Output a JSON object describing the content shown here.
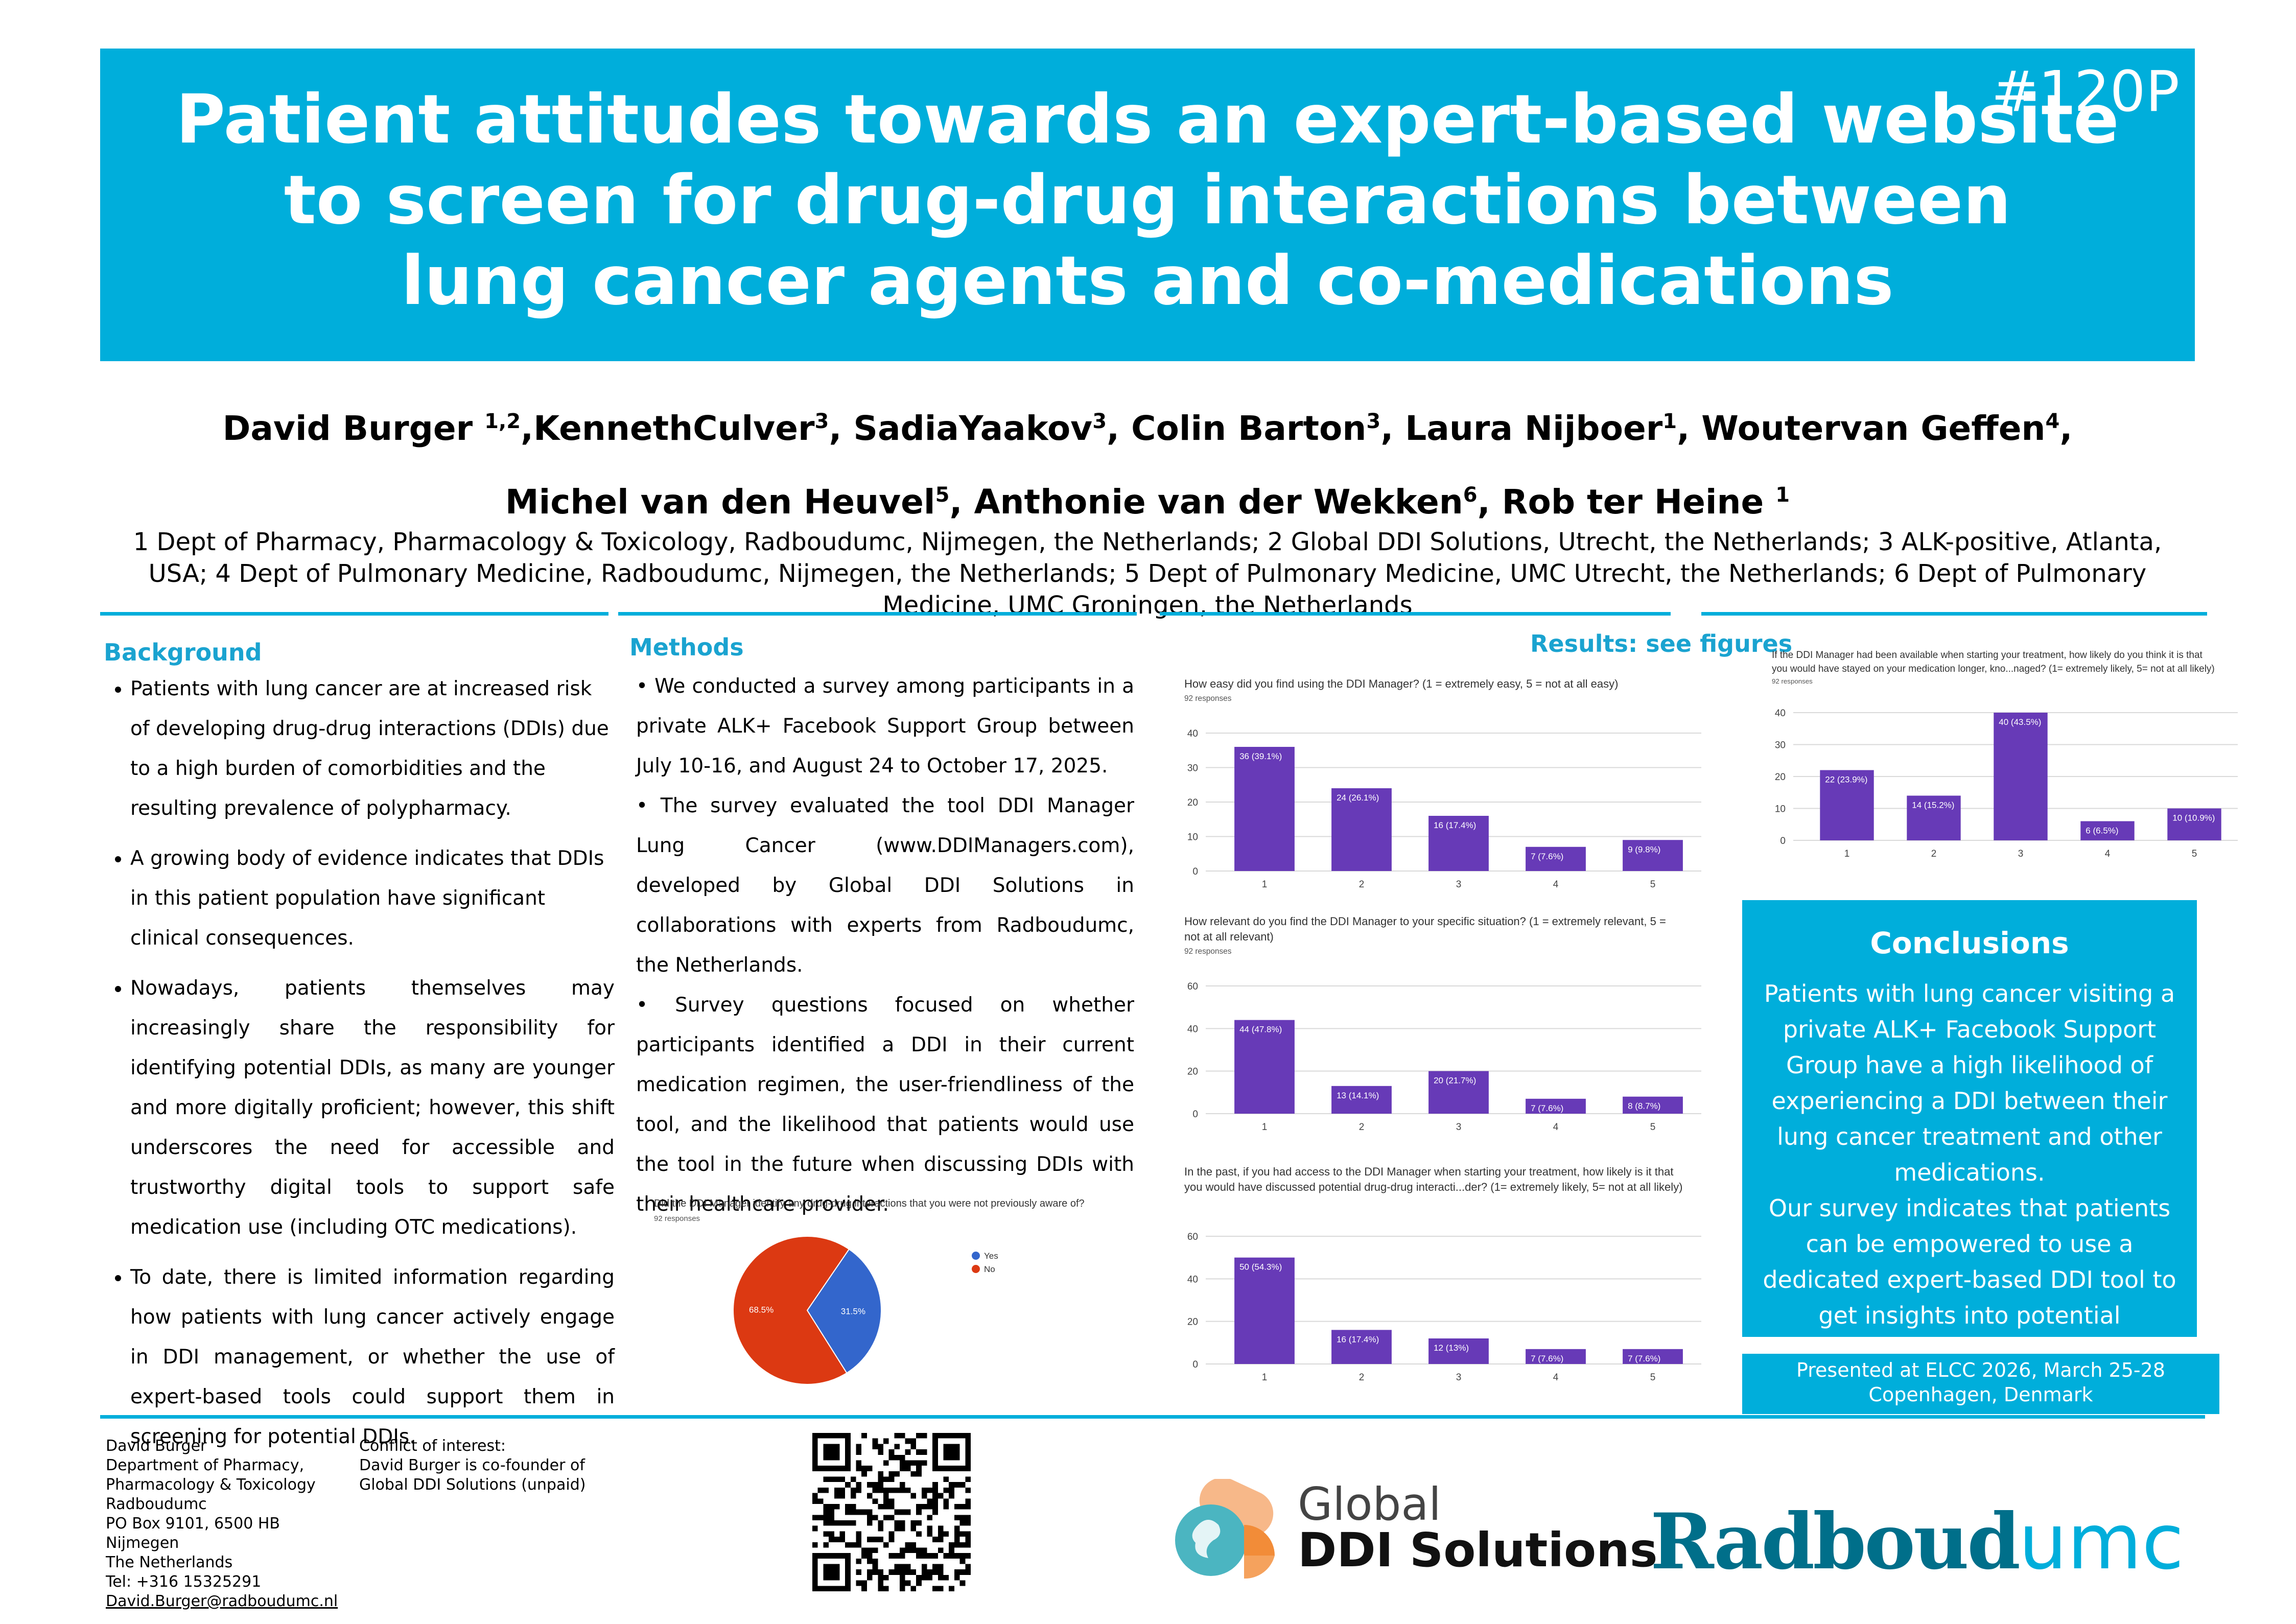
{
  "header": {
    "poster_id": "#120P",
    "title_lines": [
      "Patient attitudes towards an expert-based website",
      "to screen for drug-drug interactions between",
      "lung cancer agents and co-medications"
    ]
  },
  "authors": {
    "line1": [
      {
        "name": "David Burger ",
        "sup": "1,2"
      },
      {
        "name": ",KennethCulver",
        "sup": "3"
      },
      {
        "name": ", SadiaYaakov",
        "sup": "3"
      },
      {
        "name": ", Colin Barton",
        "sup": "3"
      },
      {
        "name": ", Laura Nijboer",
        "sup": "1"
      },
      {
        "name": ", Woutervan Geffen",
        "sup": "4"
      },
      {
        "name": ",",
        "sup": ""
      }
    ],
    "line2": [
      {
        "name": "Michel van den Heuvel",
        "sup": "5"
      },
      {
        "name": ", Anthonie van der Wekken",
        "sup": "6"
      },
      {
        "name": ", Rob ter Heine ",
        "sup": "1"
      }
    ],
    "affiliations": "1 Dept of Pharmacy, Pharmacology & Toxicology, Radboudumc, Nijmegen, the Netherlands; 2 Global DDI Solutions, Utrecht, the Netherlands; 3 ALK-positive, Atlanta, USA; 4 Dept of Pulmonary Medicine, Radboudumc, Nijmegen, the Netherlands; 5 Dept of Pulmonary Medicine, UMC Utrecht, the Netherlands; 6 Dept of Pulmonary Medicine, UMC Groningen, the Netherlands"
  },
  "background": {
    "heading": "Background",
    "bullets": [
      "Patients with lung cancer are at increased risk of developing drug-drug interactions (DDIs) due to a high burden of comorbidities and the resulting prevalence of polypharmacy.",
      "A growing body of evidence indicates that DDIs in this patient population have significant clinical consequences.",
      "Nowadays, patients themselves may increasingly share the responsibility for identifying potential DDIs, as many are younger and more digitally proficient; however, this shift underscores the need for accessible and trustworthy digital tools to support safe medication use (including OTC medications).",
      "To date, there is limited information regarding how patients with lung cancer actively engage in DDI management, or whether the use of expert-based tools could support them in screening for potential DDIs."
    ]
  },
  "methods": {
    "heading": "Methods",
    "paragraphs": [
      "• We conducted a survey among participants in a private ALK+ Facebook Support Group between July 10-16, and August 24 to October 17, 2025.",
      "• The survey evaluated the tool DDI Manager Lung Cancer (www.DDIManagers.com), developed by Global DDI Solutions in collaborations with experts from Radboudumc, the Netherlands.",
      "• Survey questions focused on whether participants identified a DDI in their current medication regimen, the user-friendliness of the tool, and the likelihood that patients would use the tool in the future when discussing DDIs with their healthcare provider."
    ]
  },
  "results": {
    "heading": "Results: see figures"
  },
  "chart_data": [
    {
      "id": "pie",
      "type": "pie",
      "title": "Did the DDI Manager identify any drug-drug interactions that you were not previously aware of?",
      "subtitle": "92 responses",
      "categories": [
        "Yes",
        "No"
      ],
      "values": [
        31.5,
        68.5
      ],
      "labels": [
        "31.5%",
        "68.5%"
      ],
      "colors": [
        "#3366cc",
        "#dc3912"
      ],
      "legend": "right"
    },
    {
      "id": "easy",
      "type": "bar",
      "title": "How easy did you find using the DDI Manager?  (1 = extremely easy, 5 = not at all easy)",
      "subtitle": "92 responses",
      "categories": [
        "1",
        "2",
        "3",
        "4",
        "5"
      ],
      "values": [
        36,
        24,
        16,
        7,
        9
      ],
      "data_labels": [
        "36 (39.1%)",
        "24 (26.1%)",
        "16 (17.4%)",
        "7 (7.6%)",
        "9 (9.8%)"
      ],
      "yticks": [
        "0",
        "10",
        "20",
        "30",
        "40"
      ],
      "ylim": [
        0,
        40
      ],
      "color": "#673ab7"
    },
    {
      "id": "relevant",
      "type": "bar",
      "title": "How relevant do you find the DDI Manager to your specific situation?  (1 = extremely relevant, 5 =",
      "title_line2": "not at all relevant)",
      "subtitle": "92 responses",
      "categories": [
        "1",
        "2",
        "3",
        "4",
        "5"
      ],
      "values": [
        44,
        13,
        20,
        7,
        8
      ],
      "data_labels": [
        "44 (47.8%)",
        "13 (14.1%)",
        "20 (21.7%)",
        "7 (7.6%)",
        "8 (8.7%)"
      ],
      "yticks": [
        "0",
        "20",
        "40",
        "60"
      ],
      "ylim": [
        0,
        60
      ],
      "color": "#673ab7"
    },
    {
      "id": "discuss",
      "type": "bar",
      "title": "In the past, if you had access to the DDI Manager when starting your treatment, how likely is it that",
      "title_line2": "you would have discussed potential drug-drug interacti...der? (1= extremely likely, 5= not at all likely)",
      "subtitle": "",
      "categories": [
        "1",
        "2",
        "3",
        "4",
        "5"
      ],
      "values": [
        50,
        16,
        12,
        7,
        7
      ],
      "data_labels": [
        "50 (54.3%)",
        "16 (17.4%)",
        "12 (13%)",
        "7 (7.6%)",
        "7 (7.6%)"
      ],
      "yticks": [
        "0",
        "20",
        "40",
        "60"
      ],
      "ylim": [
        0,
        60
      ],
      "color": "#673ab7"
    },
    {
      "id": "stayed",
      "type": "bar",
      "title": "If the DDI Manager had been available when starting your treatment, how likely do you think it is that",
      "title_line2": "you would have stayed on your medication longer, kno...naged?  (1= extremely likely, 5= not at all likely)",
      "subtitle": "92 responses",
      "categories": [
        "1",
        "2",
        "3",
        "4",
        "5"
      ],
      "values": [
        22,
        14,
        40,
        6,
        10
      ],
      "data_labels": [
        "22 (23.9%)",
        "14 (15.2%)",
        "40 (43.5%)",
        "6 (6.5%)",
        "10 (10.9%)"
      ],
      "yticks": [
        "0",
        "10",
        "20",
        "30",
        "40"
      ],
      "ylim": [
        0,
        40
      ],
      "color": "#673ab7"
    }
  ],
  "conclusions": {
    "heading": "Conclusions",
    "text1": "Patients with lung cancer visiting a private ALK+ Facebook Support Group have a high likelihood of experiencing a DDI between their lung cancer treatment and other medications.",
    "text2": "Our survey indicates that patients can be empowered to use a dedicated expert-based DDI tool to get insights into potential interactions."
  },
  "presented": {
    "line1": "Presented at ELCC 2026, March 25-28",
    "line2": "Copenhagen, Denmark"
  },
  "footer": {
    "contact_lines": [
      "David Burger",
      "Department of Pharmacy,",
      "Pharmacology & Toxicology",
      "Radboudumc",
      "PO Box 9101, 6500 HB Nijmegen",
      "The Netherlands",
      "Tel: +316 15325291"
    ],
    "contact_email": "David.Burger@radboudumc.nl",
    "conflict_lines": [
      "Conflict of interest:",
      "David Burger is co-founder of",
      "Global DDI Solutions (unpaid)"
    ],
    "logo_global_line1": "Global",
    "logo_global_line2": "DDI Solutions",
    "logo_radboud_part1": "Radboud",
    "logo_radboud_part2": "umc"
  }
}
